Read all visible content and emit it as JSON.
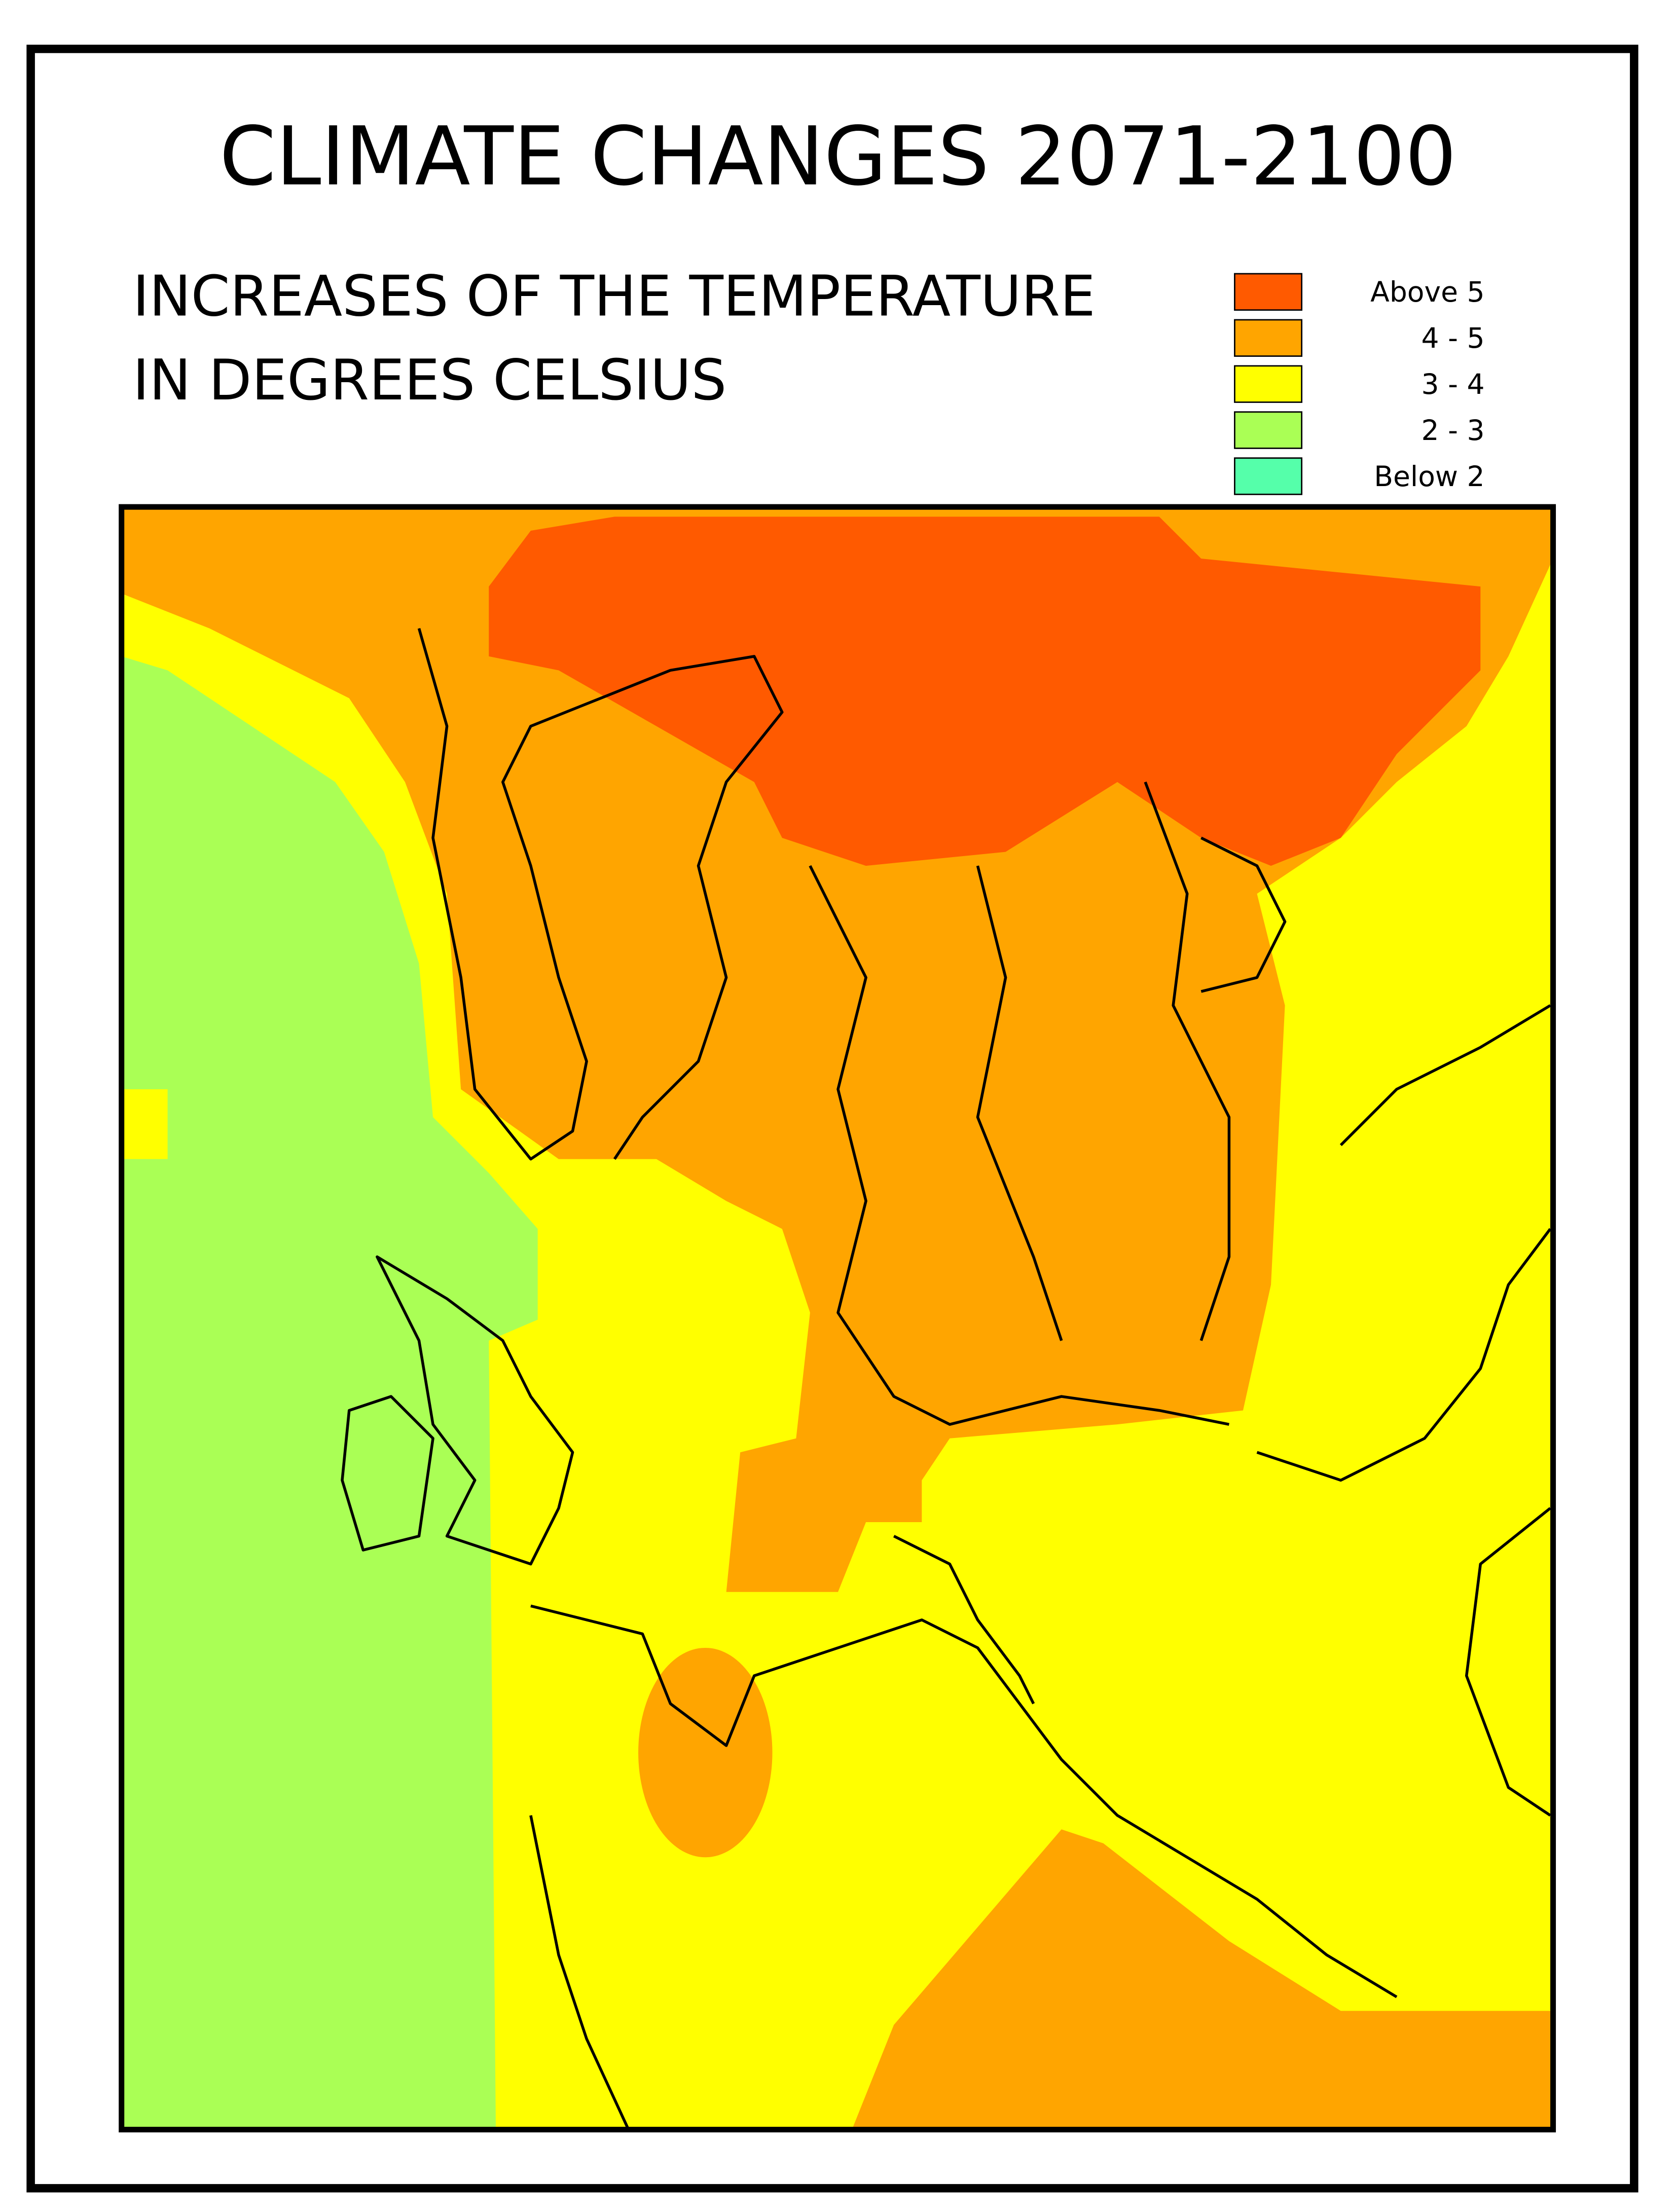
{
  "header": {
    "title": "CLIMATE CHANGES 2071-2100",
    "subtitle": [
      "INCREASES OF THE TEMPERATURE",
      "IN DEGREES CELSIUS"
    ]
  },
  "legend": [
    {
      "label": "Above 5",
      "color": "#ff5a00"
    },
    {
      "label": "4 - 5",
      "color": "#ffa500"
    },
    {
      "label": "3 - 4",
      "color": "#ffff00"
    },
    {
      "label": "2 - 3",
      "color": "#aaff55"
    },
    {
      "label": "Below 2",
      "color": "#55ffaa"
    }
  ]
}
